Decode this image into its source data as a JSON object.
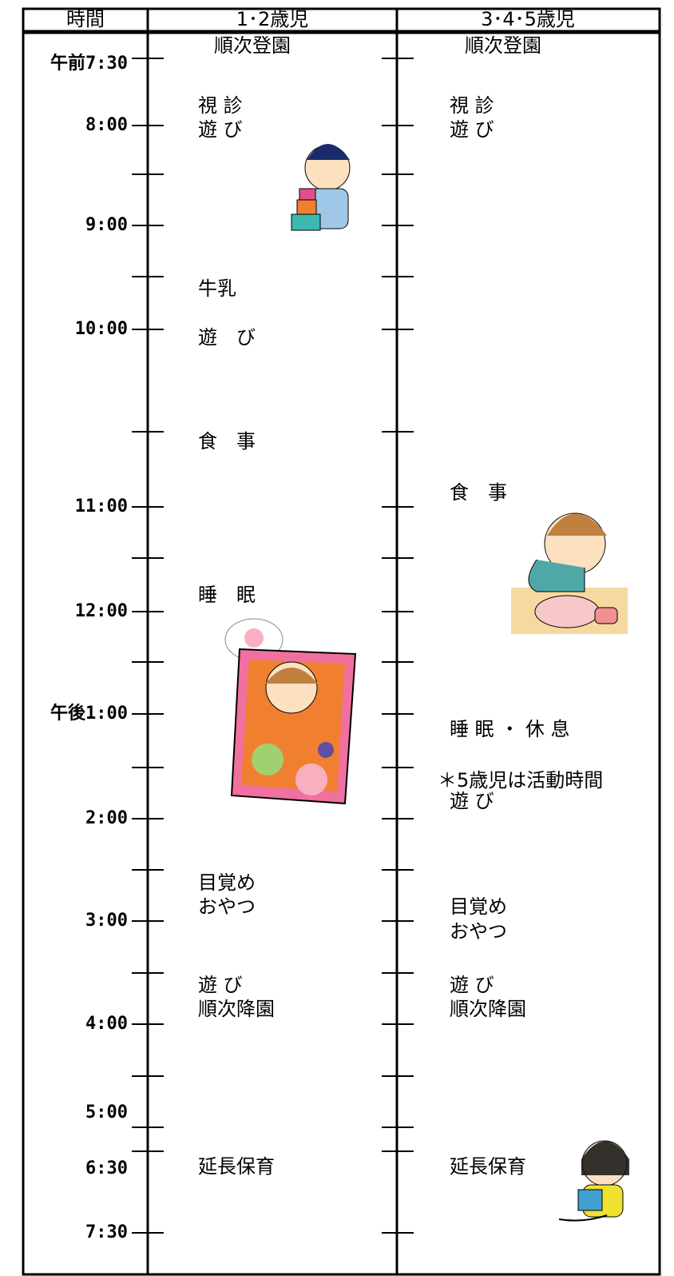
{
  "header": {
    "time": "時間",
    "col1": "1･2歳児",
    "col2": "3･4･5歳児"
  },
  "times": [
    {
      "prefix": "午前",
      "time": "7:30"
    },
    {
      "time": "8:00"
    },
    {
      "time": "9:00"
    },
    {
      "time": "10:00"
    },
    {
      "time": "11:00"
    },
    {
      "time": "12:00"
    },
    {
      "prefix": "午後",
      "time": "1:00"
    },
    {
      "time": "2:00"
    },
    {
      "time": "3:00"
    },
    {
      "time": "4:00"
    },
    {
      "time": "5:00"
    },
    {
      "time": "6:30"
    },
    {
      "time": "7:30"
    }
  ],
  "col1": [
    "順次登園",
    "視 診",
    "遊 び",
    "牛乳",
    "遊　び",
    "食　事",
    "睡　眠",
    "目覚め",
    "おやつ",
    "遊 び",
    "順次降園",
    "延長保育"
  ],
  "col2": [
    "順次登園",
    "視 診",
    "遊 び",
    "食　事",
    "睡 眠 ・ 休 息",
    "＊5歳児は活動時間",
    "遊 び",
    "目覚め",
    "おやつ",
    "遊 び",
    "順次降園",
    "延長保育"
  ]
}
